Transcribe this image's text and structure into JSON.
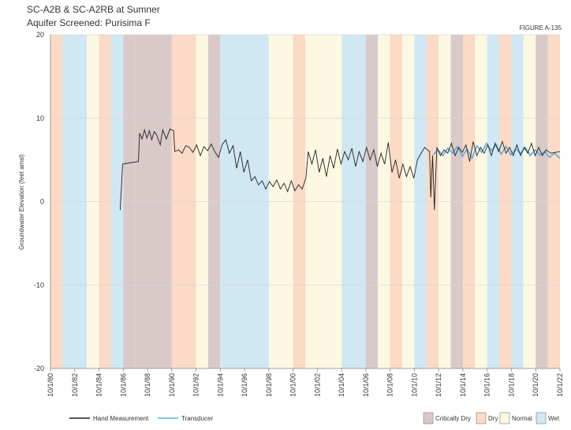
{
  "chart_data": {
    "type": "line",
    "title": "SC-A2B & SC-A2RB  at Sumner",
    "subtitle": "Aquifer Screened: Purisima F",
    "figure_label": "FIGURE A-135",
    "y_label": "Groundwater Elevation (feet amsl)",
    "ylim": [
      -20,
      20
    ],
    "yticks": [
      -20,
      -10,
      0,
      10,
      20
    ],
    "xlim": [
      1980.75,
      2022.75
    ],
    "xticks": [
      {
        "value": 1980.75,
        "label": "10/1/80"
      },
      {
        "value": 1982.75,
        "label": "10/1/82"
      },
      {
        "value": 1984.75,
        "label": "10/1/84"
      },
      {
        "value": 1986.75,
        "label": "10/1/86"
      },
      {
        "value": 1988.75,
        "label": "10/1/88"
      },
      {
        "value": 1990.75,
        "label": "10/1/90"
      },
      {
        "value": 1992.75,
        "label": "10/1/92"
      },
      {
        "value": 1994.75,
        "label": "10/1/94"
      },
      {
        "value": 1996.75,
        "label": "10/1/96"
      },
      {
        "value": 1998.75,
        "label": "10/1/98"
      },
      {
        "value": 2000.75,
        "label": "10/1/00"
      },
      {
        "value": 2002.75,
        "label": "10/1/02"
      },
      {
        "value": 2004.75,
        "label": "10/1/04"
      },
      {
        "value": 2006.75,
        "label": "10/1/06"
      },
      {
        "value": 2008.75,
        "label": "10/1/08"
      },
      {
        "value": 2010.75,
        "label": "10/1/10"
      },
      {
        "value": 2012.75,
        "label": "10/1/12"
      },
      {
        "value": 2014.75,
        "label": "10/1/14"
      },
      {
        "value": 2016.75,
        "label": "10/1/16"
      },
      {
        "value": 2018.75,
        "label": "10/1/18"
      },
      {
        "value": 2020.75,
        "label": "10/1/20"
      },
      {
        "value": 2022.75,
        "label": "10/1/22"
      }
    ],
    "grid": true,
    "water_year_types": [
      {
        "name": "Critically Dry",
        "color": "#d9c9c9"
      },
      {
        "name": "Dry",
        "color": "#fbdac6"
      },
      {
        "name": "Normal",
        "color": "#fdf8e2"
      },
      {
        "name": "Wet",
        "color": "#cfe8f3"
      }
    ],
    "water_years": [
      1981,
      1982,
      1983,
      1984,
      1985,
      1986,
      1987,
      1988,
      1989,
      1990,
      1991,
      1992,
      1993,
      1994,
      1995,
      1996,
      1997,
      1998,
      1999,
      2000,
      2001,
      2002,
      2003,
      2004,
      2005,
      2006,
      2007,
      2008,
      2009,
      2010,
      2011,
      2012,
      2013,
      2014,
      2015,
      2016,
      2017,
      2018,
      2019,
      2020,
      2021,
      2022
    ],
    "water_year_type": [
      1,
      3,
      3,
      2,
      1,
      3,
      0,
      0,
      0,
      0,
      1,
      1,
      2,
      0,
      3,
      3,
      3,
      3,
      2,
      2,
      1,
      2,
      2,
      2,
      3,
      3,
      0,
      2,
      1,
      2,
      3,
      1,
      2,
      0,
      1,
      2,
      3,
      1,
      3,
      2,
      0,
      1
    ],
    "series": [
      {
        "name": "Hand Measurement",
        "color": "#222222",
        "x": [
          1986.5,
          1986.7,
          1988.0,
          1988.1,
          1988.3,
          1988.5,
          1988.7,
          1988.9,
          1989.1,
          1989.3,
          1989.5,
          1989.8,
          1990.0,
          1990.3,
          1990.6,
          1990.9,
          1991.0,
          1991.3,
          1991.6,
          1991.9,
          1992.2,
          1992.5,
          1992.8,
          1993.1,
          1993.4,
          1993.7,
          1994.0,
          1994.3,
          1994.6,
          1994.9,
          1995.2,
          1995.5,
          1995.8,
          1996.1,
          1996.4,
          1996.7,
          1997.0,
          1997.3,
          1997.6,
          1997.9,
          1998.2,
          1998.5,
          1998.8,
          1999.1,
          1999.4,
          1999.7,
          2000.0,
          2000.3,
          2000.6,
          2000.9,
          2001.2,
          2001.5,
          2001.8,
          2002.0,
          2002.3,
          2002.6,
          2002.9,
          2003.2,
          2003.5,
          2003.8,
          2004.1,
          2004.4,
          2004.7,
          2005.0,
          2005.3,
          2005.6,
          2005.9,
          2006.2,
          2006.5,
          2006.8,
          2007.1,
          2007.4,
          2007.7,
          2008.0,
          2008.3,
          2008.6,
          2008.9,
          2009.2,
          2009.5,
          2009.8,
          2010.1,
          2010.4,
          2010.7,
          2011.0,
          2011.3,
          2011.6,
          2012.0,
          2012.1,
          2012.25,
          2012.4,
          2012.6,
          2012.9,
          2013.2,
          2013.5,
          2013.8,
          2014.1,
          2014.4,
          2014.7,
          2015.0,
          2015.3,
          2015.6,
          2015.9,
          2016.2,
          2016.5,
          2016.8,
          2017.1,
          2017.4,
          2017.7,
          2018.0,
          2018.3,
          2018.6,
          2018.9,
          2019.2,
          2019.5,
          2019.8,
          2020.1,
          2020.4,
          2020.7,
          2021.0,
          2021.3,
          2021.6,
          2022.0,
          2022.75
        ],
        "values": [
          -1.0,
          4.5,
          4.8,
          8.2,
          7.5,
          8.6,
          7.6,
          8.5,
          7.4,
          8.4,
          8.0,
          6.8,
          8.6,
          7.5,
          8.7,
          8.5,
          6.0,
          6.2,
          5.8,
          6.7,
          6.5,
          5.9,
          6.8,
          5.5,
          6.6,
          6.1,
          6.9,
          6.0,
          5.3,
          6.8,
          7.4,
          5.8,
          6.7,
          4.0,
          6.0,
          3.5,
          5.0,
          2.5,
          3.0,
          2.0,
          2.5,
          1.5,
          2.4,
          1.8,
          2.6,
          1.5,
          2.2,
          1.2,
          2.5,
          1.3,
          2.0,
          1.5,
          2.8,
          6.0,
          4.5,
          6.2,
          3.5,
          5.2,
          3.0,
          5.5,
          4.0,
          6.3,
          4.5,
          6.0,
          5.0,
          6.4,
          4.2,
          6.0,
          4.8,
          6.5,
          5.0,
          6.2,
          4.2,
          5.8,
          4.5,
          7.1,
          3.5,
          5.0,
          2.8,
          4.5,
          3.0,
          4.2,
          2.8,
          5.0,
          5.8,
          6.5,
          6.0,
          0.5,
          5.5,
          -1.0,
          6.5,
          5.5,
          6.2,
          5.8,
          7.0,
          5.5,
          6.5,
          5.9,
          6.8,
          4.8,
          7.2,
          5.5,
          6.5,
          5.8,
          6.8,
          5.5,
          7.0,
          6.0,
          7.2,
          5.8,
          6.5,
          5.5,
          6.8,
          5.5,
          6.5,
          5.8,
          7.0,
          5.5,
          6.5,
          5.5,
          6.2,
          5.8,
          6.0
        ]
      },
      {
        "name": "Transducer",
        "color": "#5aaee0",
        "x": [
          2012.3,
          2012.7,
          2013.1,
          2013.5,
          2013.9,
          2014.3,
          2014.7,
          2015.1,
          2015.5,
          2015.9,
          2016.3,
          2016.7,
          2017.1,
          2017.5,
          2017.9,
          2018.3,
          2018.7,
          2019.1,
          2019.5,
          2019.9,
          2020.3,
          2020.7,
          2021.1,
          2021.5,
          2021.9,
          2022.3,
          2022.75
        ],
        "values": [
          5.6,
          6.2,
          5.5,
          6.4,
          5.8,
          6.6,
          5.4,
          6.3,
          5.2,
          6.7,
          5.9,
          7.0,
          6.1,
          6.8,
          5.7,
          6.6,
          5.6,
          6.3,
          5.8,
          6.5,
          5.5,
          6.2,
          5.6,
          6.0,
          5.3,
          5.8,
          5.2
        ]
      }
    ]
  }
}
